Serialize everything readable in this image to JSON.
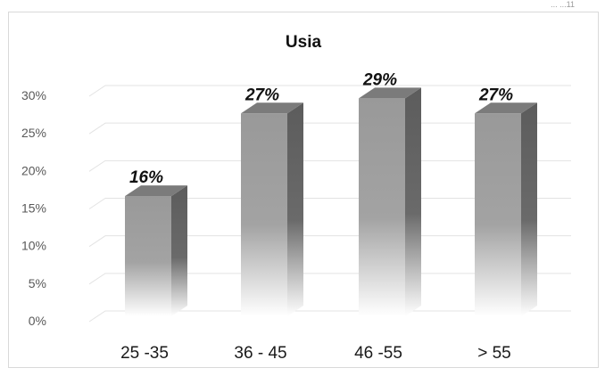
{
  "corner_text": "... ...11",
  "chart_data": {
    "type": "bar",
    "title": "Usia",
    "categories": [
      "25 -35",
      "36 - 45",
      "46 -55",
      "> 55"
    ],
    "values": [
      16,
      27,
      29,
      27
    ],
    "data_labels": [
      "16%",
      "27%",
      "29%",
      "27%"
    ],
    "y_ticks": [
      "0%",
      "5%",
      "10%",
      "15%",
      "20%",
      "25%",
      "30%"
    ],
    "ylim": [
      0,
      30
    ],
    "xlabel": "",
    "ylabel": "",
    "grid": true,
    "legend": "none",
    "style": "3d-column",
    "colors": {
      "front": "#9a9a9a",
      "side": "#5f5f5f",
      "top": "#7b7b7b",
      "grid": "#e3e3e3"
    }
  }
}
